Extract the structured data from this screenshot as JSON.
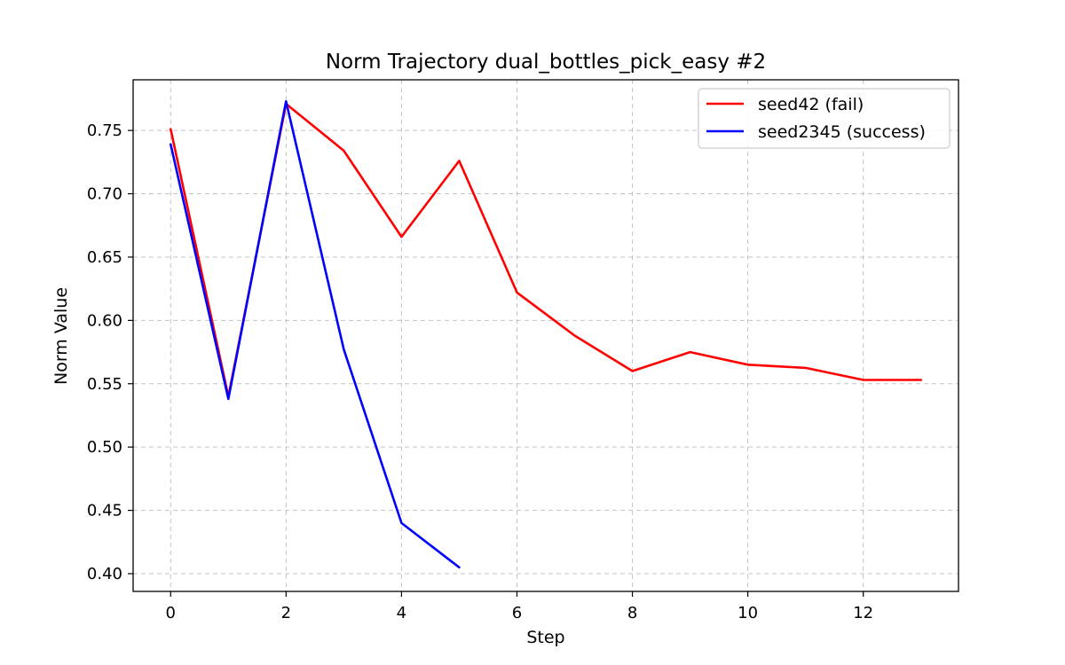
{
  "chart_data": {
    "type": "line",
    "title": "Norm Trajectory dual_bottles_pick_easy #2",
    "xlabel": "Step",
    "ylabel": "Norm Value",
    "xlim": [
      -0.65,
      13.65
    ],
    "ylim": [
      0.386,
      0.79
    ],
    "xticks": [
      0,
      2,
      4,
      6,
      8,
      10,
      12
    ],
    "yticks": [
      0.4,
      0.45,
      0.5,
      0.55,
      0.6,
      0.65,
      0.7,
      0.75
    ],
    "grid": true,
    "legend_position": "top-right",
    "series": [
      {
        "name": "seed42 (fail)",
        "color": "#ff0000",
        "x": [
          0,
          1,
          2,
          3,
          4,
          5,
          6,
          7,
          8,
          9,
          10,
          11,
          12,
          13
        ],
        "y": [
          0.751,
          0.54,
          0.771,
          0.734,
          0.666,
          0.726,
          0.622,
          0.588,
          0.56,
          0.575,
          0.565,
          0.5625,
          0.553,
          0.553
        ]
      },
      {
        "name": "seed2345 (success)",
        "color": "#0000ff",
        "x": [
          0,
          1,
          2,
          3,
          4,
          5
        ],
        "y": [
          0.739,
          0.538,
          0.773,
          0.577,
          0.44,
          0.405
        ]
      }
    ]
  }
}
